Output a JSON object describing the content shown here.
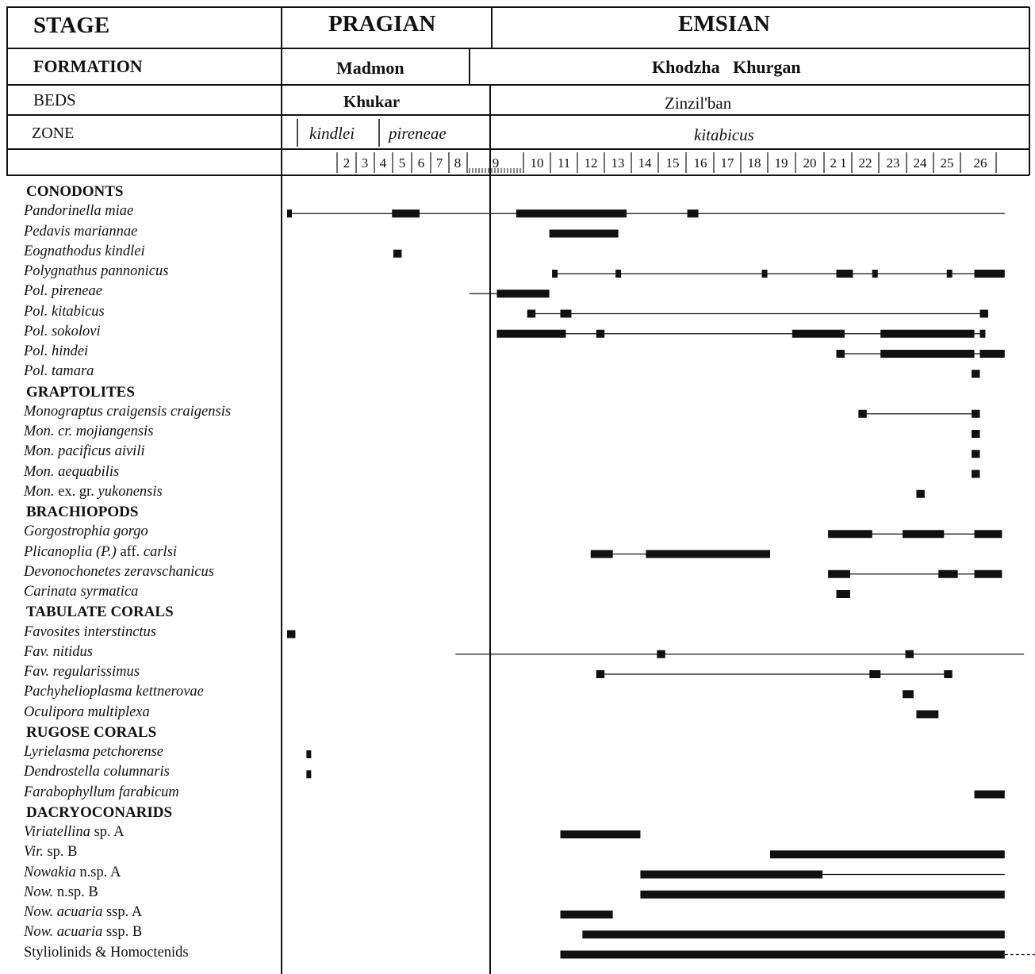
{
  "chart_data": {
    "type": "range",
    "header": {
      "stage_label": "STAGE",
      "formation_label": "FORMATION",
      "beds_label": "BEDS",
      "zone_label": "ZONE",
      "stages": [
        "PRAGIAN",
        "EMSIAN"
      ],
      "formations": [
        "Madmon",
        "Khodzha   Khurgan"
      ],
      "beds": [
        "Khukar",
        "Zinzil'ban"
      ],
      "zones": [
        "kindlei",
        "pireneae",
        "kitabicus"
      ],
      "bed_numbers": [
        "2",
        "3",
        "4",
        "5",
        "6",
        "7",
        "8",
        "9",
        "10",
        "11",
        "12",
        "13",
        "14",
        "15",
        "16",
        "17",
        "18",
        "19",
        "20",
        "2 1",
        "22",
        "23",
        "24",
        "25",
        "26"
      ]
    },
    "rows": [
      {
        "group": "CONODONTS"
      },
      {
        "taxon": [
          {
            "t": "Pandorinella miae",
            "i": true
          }
        ],
        "line": [
          0.0,
          26.0
        ],
        "bars": [
          [
            0.0,
            0.15
          ],
          [
            3.8,
            4.8
          ],
          [
            8.3,
            12.3
          ],
          [
            14.5,
            14.9
          ]
        ]
      },
      {
        "taxon": [
          {
            "t": "Pedavis mariannae",
            "i": true
          }
        ],
        "line": null,
        "bars": [
          [
            9.5,
            12.0
          ]
        ]
      },
      {
        "taxon": [
          {
            "t": "Eognathodus kindlei",
            "i": true
          }
        ],
        "line": null,
        "bars": [
          [
            3.85,
            4.15
          ]
        ]
      },
      {
        "taxon": [
          {
            "t": "Polygnathus pannonicus",
            "i": true
          }
        ],
        "line": [
          9.6,
          26.0
        ],
        "bars": [
          [
            9.6,
            9.8
          ],
          [
            11.9,
            12.1
          ],
          [
            17.2,
            17.4
          ],
          [
            19.9,
            20.5
          ],
          [
            21.2,
            21.4
          ],
          [
            23.9,
            24.1
          ],
          [
            24.9,
            26.0
          ]
        ]
      },
      {
        "taxon": [
          {
            "t": "Pol. pireneae",
            "i": true
          }
        ],
        "line": [
          6.6,
          8.7
        ],
        "bars": [
          [
            7.6,
            9.5
          ]
        ]
      },
      {
        "taxon": [
          {
            "t": "Pol. kitabicus",
            "i": true
          }
        ],
        "line": [
          8.7,
          25.4
        ],
        "bars": [
          [
            8.7,
            9.0
          ],
          [
            9.9,
            10.3
          ],
          [
            25.1,
            25.4
          ]
        ]
      },
      {
        "taxon": [
          {
            "t": "Pol. sokolovi",
            "i": true
          }
        ],
        "line": [
          7.6,
          25.3
        ],
        "bars": [
          [
            7.6,
            10.1
          ],
          [
            11.2,
            11.5
          ],
          [
            18.3,
            20.2
          ],
          [
            21.5,
            24.9
          ],
          [
            25.1,
            25.3
          ]
        ]
      },
      {
        "taxon": [
          {
            "t": "Pol. hindei",
            "i": true
          }
        ],
        "line": [
          19.9,
          26.0
        ],
        "bars": [
          [
            19.9,
            20.2
          ],
          [
            21.5,
            24.9
          ],
          [
            25.1,
            26.0
          ]
        ]
      },
      {
        "taxon": [
          {
            "t": "Pol. tamara",
            "i": true
          }
        ],
        "line": null,
        "bars": [
          [
            24.8,
            25.1
          ]
        ]
      },
      {
        "group": "GRAPTOLITES"
      },
      {
        "taxon": [
          {
            "t": "Monograptus craigensis craigensis",
            "i": true
          }
        ],
        "line": [
          20.7,
          25.1
        ],
        "bars": [
          [
            20.7,
            21.0
          ],
          [
            24.8,
            25.1
          ]
        ]
      },
      {
        "taxon": [
          {
            "t": "Mon. cr. mojiangensis",
            "i": true
          }
        ],
        "line": null,
        "bars": [
          [
            24.8,
            25.1
          ]
        ]
      },
      {
        "taxon": [
          {
            "t": "Mon. pacificus aivili",
            "i": true
          }
        ],
        "line": null,
        "bars": [
          [
            24.8,
            25.1
          ]
        ]
      },
      {
        "taxon": [
          {
            "t": "Mon. aequabilis",
            "i": true
          }
        ],
        "line": null,
        "bars": [
          [
            24.8,
            25.1
          ]
        ]
      },
      {
        "taxon": [
          {
            "t": "Mon.",
            "i": true
          },
          {
            "t": " ex. gr. ",
            "i": false
          },
          {
            "t": "yukonensis",
            "i": true
          }
        ],
        "line": null,
        "bars": [
          [
            22.8,
            23.1
          ]
        ]
      },
      {
        "group": "BRACHIOPODS"
      },
      {
        "taxon": [
          {
            "t": "Gorgostrophia gorgo",
            "i": true
          }
        ],
        "line": [
          19.6,
          25.9
        ],
        "bars": [
          [
            19.6,
            21.2
          ],
          [
            22.3,
            23.8
          ],
          [
            24.9,
            25.9
          ]
        ]
      },
      {
        "taxon": [
          {
            "t": "Plicanoplia (P.)",
            "i": true
          },
          {
            "t": " aff. ",
            "i": false
          },
          {
            "t": "carlsi",
            "i": true
          }
        ],
        "line": [
          11.0,
          17.5
        ],
        "bars": [
          [
            11.0,
            11.8
          ],
          [
            13.0,
            17.5
          ]
        ]
      },
      {
        "taxon": [
          {
            "t": "Devonochonetes zeravschanicus",
            "i": true
          }
        ],
        "line": [
          19.6,
          25.9
        ],
        "bars": [
          [
            19.6,
            20.4
          ],
          [
            23.6,
            24.3
          ],
          [
            24.9,
            25.9
          ]
        ]
      },
      {
        "taxon": [
          {
            "t": "Carinata syrmatica",
            "i": true
          }
        ],
        "line": null,
        "bars": [
          [
            19.9,
            20.4
          ]
        ]
      },
      {
        "group": "TABULATE CORALS"
      },
      {
        "taxon": [
          {
            "t": "Favosites interstinctus",
            "i": true
          }
        ],
        "line": null,
        "bars": [
          [
            0.0,
            0.3
          ]
        ]
      },
      {
        "taxon": [
          {
            "t": "Fav. nitidus",
            "i": true
          }
        ],
        "line": [
          6.1,
          26.7
        ],
        "bars": [
          [
            13.4,
            13.7
          ],
          [
            22.4,
            22.7
          ]
        ]
      },
      {
        "taxon": [
          {
            "t": "Fav. regularissimus",
            "i": true
          }
        ],
        "line": [
          11.2,
          24.1
        ],
        "bars": [
          [
            11.2,
            11.5
          ],
          [
            21.1,
            21.5
          ],
          [
            23.8,
            24.1
          ]
        ]
      },
      {
        "taxon": [
          {
            "t": "Pachyhelioplasma kettnerovae",
            "i": true
          }
        ],
        "line": null,
        "bars": [
          [
            22.3,
            22.7
          ]
        ]
      },
      {
        "taxon": [
          {
            "t": "Oculipora multiplexa",
            "i": true
          }
        ],
        "line": null,
        "bars": [
          [
            22.8,
            23.6
          ]
        ]
      },
      {
        "group": "RUGOSE CORALS"
      },
      {
        "taxon": [
          {
            "t": "Lyrielasma petchorense",
            "i": true
          }
        ],
        "line": null,
        "bars": [
          [
            0.7,
            0.85
          ]
        ]
      },
      {
        "taxon": [
          {
            "t": "Dendrostella columnaris",
            "i": true
          }
        ],
        "line": null,
        "bars": [
          [
            0.7,
            0.85
          ]
        ]
      },
      {
        "taxon": [
          {
            "t": "Farabophyllum farabicum",
            "i": true
          }
        ],
        "line": null,
        "bars": [
          [
            24.9,
            26.0
          ]
        ]
      },
      {
        "group": "DACRYOCONARIDS"
      },
      {
        "taxon": [
          {
            "t": "Viriatellina",
            "i": true
          },
          {
            "t": " sp. A",
            "i": false
          }
        ],
        "line": null,
        "bars": [
          [
            9.9,
            12.8
          ]
        ]
      },
      {
        "taxon": [
          {
            "t": "Vir.",
            "i": true
          },
          {
            "t": " sp. B",
            "i": false
          }
        ],
        "line": null,
        "bars": [
          [
            17.5,
            26.0
          ]
        ]
      },
      {
        "taxon": [
          {
            "t": "Nowakia",
            "i": true
          },
          {
            "t": " n.sp. A",
            "i": false
          }
        ],
        "line": [
          12.8,
          26.0
        ],
        "bars": [
          [
            12.8,
            19.4
          ]
        ]
      },
      {
        "taxon": [
          {
            "t": "Now.",
            "i": true
          },
          {
            "t": " n.sp. B",
            "i": false
          }
        ],
        "line": null,
        "bars": [
          [
            12.8,
            26.0
          ]
        ]
      },
      {
        "taxon": [
          {
            "t": "Now. acuaria",
            "i": true
          },
          {
            "t": " ssp. A",
            "i": false
          }
        ],
        "line": null,
        "bars": [
          [
            9.9,
            11.8
          ]
        ]
      },
      {
        "taxon": [
          {
            "t": "Now. acuaria",
            "i": true
          },
          {
            "t": " ssp. B",
            "i": false
          }
        ],
        "line": null,
        "bars": [
          [
            10.7,
            26.0
          ]
        ]
      },
      {
        "taxon": [
          {
            "t": "Styliolinids & Homoctenids",
            "i": false
          }
        ],
        "line": null,
        "dashed": [
          26.0,
          27.1
        ],
        "bars": [
          [
            9.9,
            26.0
          ]
        ]
      }
    ]
  }
}
